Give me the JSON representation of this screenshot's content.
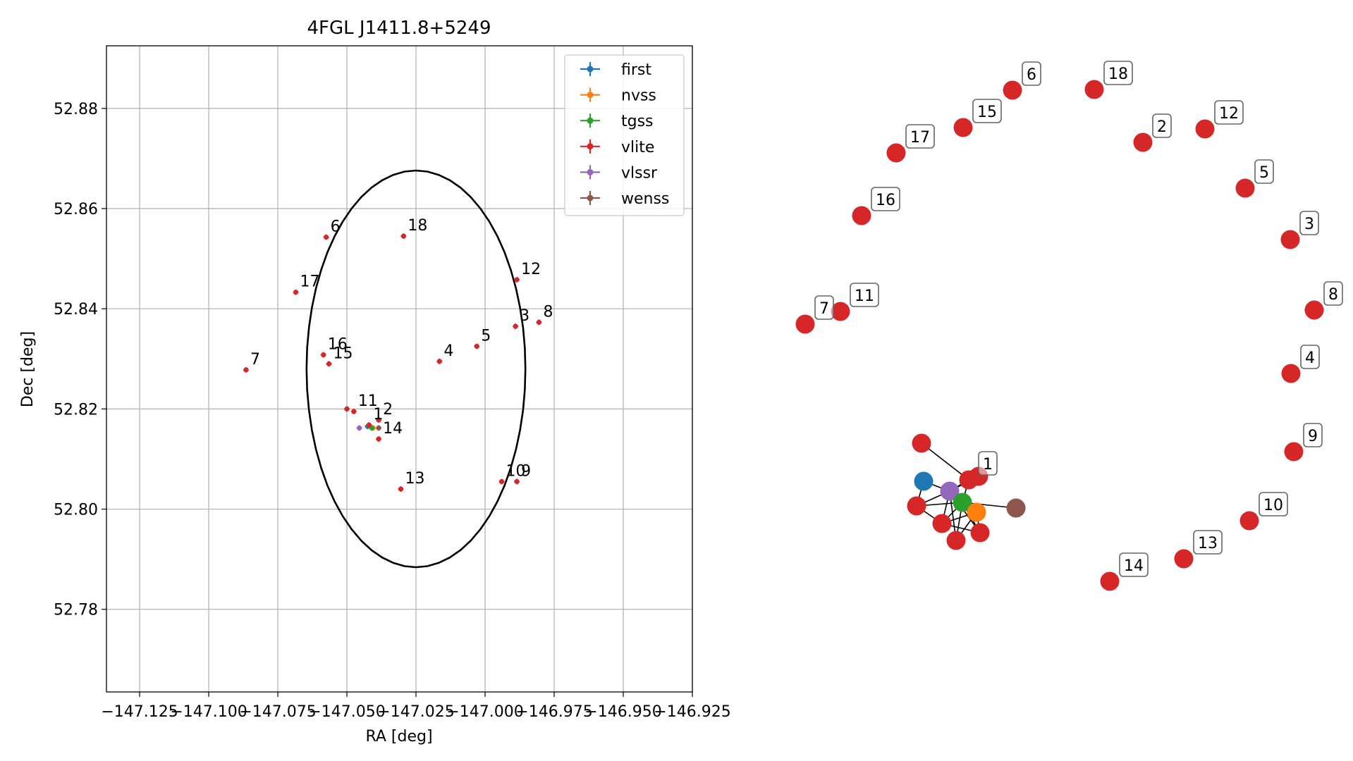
{
  "chart_data": [
    {
      "type": "scatter",
      "title": "4FGL J1411.8+5249",
      "xlabel": "RA [deg]",
      "ylabel": "Dec [deg]",
      "xlim": [
        -147.137,
        -146.925
      ],
      "ylim": [
        52.7635,
        52.8925
      ],
      "x_ticks": [
        -147.125,
        -147.1,
        -147.075,
        -147.05,
        -147.025,
        -147.0,
        -146.975,
        -146.95,
        -146.925
      ],
      "x_tick_labels": [
        "−147.125",
        "−147.100",
        "−147.075",
        "−147.050",
        "−147.025",
        "−147.000",
        "−146.975",
        "−146.950",
        "−146.925"
      ],
      "y_ticks": [
        52.78,
        52.8,
        52.82,
        52.84,
        52.86,
        52.88
      ],
      "y_tick_labels": [
        "52.78",
        "52.80",
        "52.82",
        "52.84",
        "52.86",
        "52.88"
      ],
      "grid": true,
      "legend_position": "top-right",
      "circle": {
        "center_ra": -147.025,
        "center_dec": 52.828,
        "radius_deg": 0.0396
      },
      "legend": [
        {
          "name": "first",
          "color": "#1f77b4"
        },
        {
          "name": "nvss",
          "color": "#ff7f0e"
        },
        {
          "name": "tgss",
          "color": "#2ca02c"
        },
        {
          "name": "vlite",
          "color": "#d62728"
        },
        {
          "name": "vlssr",
          "color": "#9467bd"
        },
        {
          "name": "wenss",
          "color": "#8c564b"
        }
      ],
      "series": [
        {
          "name": "first",
          "color": "#1f77b4",
          "points": [
            {
              "x": -147.0425,
              "y": 52.8165
            }
          ]
        },
        {
          "name": "nvss",
          "color": "#ff7f0e",
          "points": [
            {
              "x": -147.0405,
              "y": 52.8162
            }
          ]
        },
        {
          "name": "tgss",
          "color": "#2ca02c",
          "points": [
            {
              "x": -147.041,
              "y": 52.8162
            }
          ]
        },
        {
          "name": "vlite",
          "color": "#d62728",
          "points": [
            {
              "x": -147.042,
              "y": 52.8168,
              "label": "1"
            },
            {
              "x": -147.0385,
              "y": 52.8178,
              "label": "2"
            },
            {
              "x": -146.989,
              "y": 52.8365,
              "label": "3"
            },
            {
              "x": -147.0165,
              "y": 52.8295,
              "label": "4"
            },
            {
              "x": -147.003,
              "y": 52.8325,
              "label": "5"
            },
            {
              "x": -147.0575,
              "y": 52.8543,
              "label": "6"
            },
            {
              "x": -147.0865,
              "y": 52.8278,
              "label": "7"
            },
            {
              "x": -146.9805,
              "y": 52.8373,
              "label": "8"
            },
            {
              "x": -146.9885,
              "y": 52.8055,
              "label": "9"
            },
            {
              "x": -146.994,
              "y": 52.8055,
              "label": "10"
            },
            {
              "x": -147.0475,
              "y": 52.8195,
              "label": "11"
            },
            {
              "x": -146.9885,
              "y": 52.8458,
              "label": "12"
            },
            {
              "x": -147.0305,
              "y": 52.804,
              "label": "13"
            },
            {
              "x": -147.0385,
              "y": 52.814,
              "label": "14"
            },
            {
              "x": -147.0565,
              "y": 52.829,
              "label": "15"
            },
            {
              "x": -147.0585,
              "y": 52.8308,
              "label": "16"
            },
            {
              "x": -147.0685,
              "y": 52.8433,
              "label": "17"
            },
            {
              "x": -147.0295,
              "y": 52.8545,
              "label": "18"
            },
            {
              "x": -147.05,
              "y": 52.82
            }
          ]
        },
        {
          "name": "vlssr",
          "color": "#9467bd",
          "points": [
            {
              "x": -147.0455,
              "y": 52.8162
            }
          ]
        },
        {
          "name": "wenss",
          "color": "#8c564b",
          "points": [
            {
              "x": -147.0385,
              "y": 52.8162
            }
          ]
        }
      ]
    },
    {
      "type": "network",
      "nodes": [
        {
          "id": "first",
          "color": "#1f77b4"
        },
        {
          "id": "nvss",
          "color": "#ff7f0e"
        },
        {
          "id": "tgss",
          "color": "#2ca02c"
        },
        {
          "id": "vlssr",
          "color": "#9467bd"
        },
        {
          "id": "wenss",
          "color": "#8c564b"
        },
        {
          "id": "v-a",
          "color": "#d62728"
        },
        {
          "id": "v-b",
          "color": "#d62728"
        },
        {
          "id": "v-c",
          "color": "#d62728"
        },
        {
          "id": "v-d",
          "color": "#d62728"
        },
        {
          "id": "v-e",
          "color": "#d62728"
        },
        {
          "id": "v-f",
          "color": "#d62728"
        },
        {
          "id": "1",
          "label": "1",
          "color": "#d62728"
        },
        {
          "id": "2",
          "label": "2",
          "color": "#d62728"
        },
        {
          "id": "3",
          "label": "3",
          "color": "#d62728"
        },
        {
          "id": "4",
          "label": "4",
          "color": "#d62728"
        },
        {
          "id": "5",
          "label": "5",
          "color": "#d62728"
        },
        {
          "id": "6",
          "label": "6",
          "color": "#d62728"
        },
        {
          "id": "7",
          "label": "7",
          "color": "#d62728"
        },
        {
          "id": "8",
          "label": "8",
          "color": "#d62728"
        },
        {
          "id": "9",
          "label": "9",
          "color": "#d62728"
        },
        {
          "id": "10",
          "label": "10",
          "color": "#d62728"
        },
        {
          "id": "11",
          "label": "11",
          "color": "#d62728"
        },
        {
          "id": "12",
          "label": "12",
          "color": "#d62728"
        },
        {
          "id": "13",
          "label": "13",
          "color": "#d62728"
        },
        {
          "id": "14",
          "label": "14",
          "color": "#d62728"
        },
        {
          "id": "15",
          "label": "15",
          "color": "#d62728"
        },
        {
          "id": "16",
          "label": "16",
          "color": "#d62728"
        },
        {
          "id": "17",
          "label": "17",
          "color": "#d62728"
        },
        {
          "id": "18",
          "label": "18",
          "color": "#d62728"
        }
      ],
      "edges": [
        [
          "first",
          "vlssr"
        ],
        [
          "first",
          "v-c"
        ],
        [
          "vlssr",
          "tgss"
        ],
        [
          "vlssr",
          "nvss"
        ],
        [
          "vlssr",
          "v-a"
        ],
        [
          "vlssr",
          "v-c"
        ],
        [
          "vlssr",
          "v-d"
        ],
        [
          "vlssr",
          "v-e"
        ],
        [
          "vlssr",
          "v-f"
        ],
        [
          "vlssr",
          "1"
        ],
        [
          "tgss",
          "nvss"
        ],
        [
          "tgss",
          "wenss"
        ],
        [
          "tgss",
          "v-c"
        ],
        [
          "tgss",
          "v-d"
        ],
        [
          "tgss",
          "v-e"
        ],
        [
          "tgss",
          "v-f"
        ],
        [
          "tgss",
          "1"
        ],
        [
          "nvss",
          "v-d"
        ],
        [
          "nvss",
          "v-e"
        ],
        [
          "nvss",
          "v-f"
        ],
        [
          "v-d",
          "v-e"
        ],
        [
          "v-c",
          "v-d"
        ],
        [
          "v-b",
          "1"
        ]
      ]
    }
  ]
}
